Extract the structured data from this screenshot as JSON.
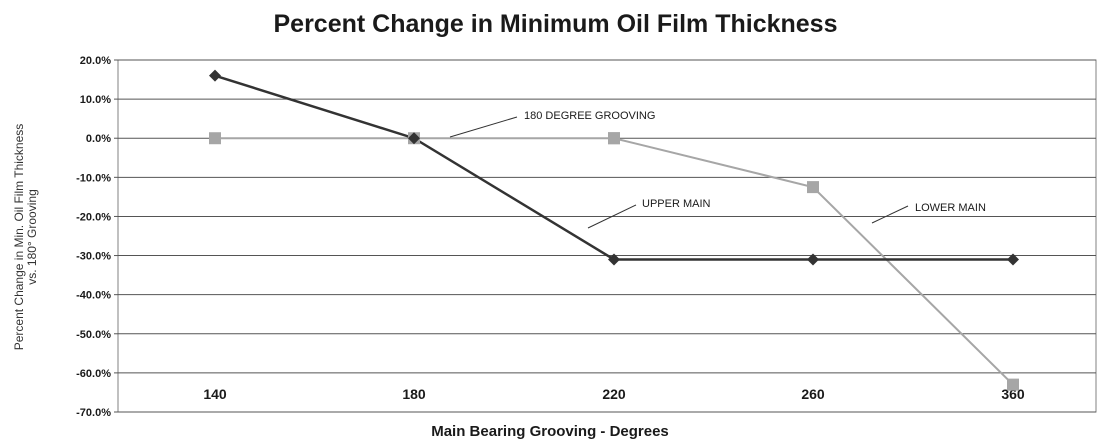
{
  "chart_data": {
    "type": "line",
    "title": "Percent Change in Minimum Oil Film Thickness",
    "xlabel": "Main Bearing Grooving - Degrees",
    "ylabel_lines": [
      "Percent Change in Min. Oil Film Thickness",
      "vs. 180° Grooving"
    ],
    "categories": [
      "140",
      "180",
      "220",
      "260",
      "360"
    ],
    "yticks": [
      "20.0%",
      "10.0%",
      "0.0%",
      "-10.0%",
      "-20.0%",
      "-30.0%",
      "-40.0%",
      "-50.0%",
      "-60.0%",
      "-70.0%"
    ],
    "ylim": [
      -70,
      20
    ],
    "grid": true,
    "series": [
      {
        "name": "UPPER MAIN",
        "marker": "diamond",
        "color": "#333333",
        "values": [
          16,
          0,
          -31,
          -31,
          -31
        ]
      },
      {
        "name": "180 DEGREE GROOVING",
        "marker": "square",
        "color": "#a6a6a6",
        "values": [
          0,
          0,
          0,
          null,
          null
        ]
      },
      {
        "name": "LOWER MAIN",
        "marker": "square",
        "color": "#a6a6a6",
        "values": [
          null,
          null,
          0,
          -12.5,
          -63
        ]
      }
    ],
    "annotations": [
      {
        "text": "180 DEGREE GROOVING",
        "series": "180 DEGREE GROOVING"
      },
      {
        "text": "UPPER MAIN",
        "series": "UPPER MAIN"
      },
      {
        "text": "LOWER MAIN",
        "series": "LOWER MAIN"
      }
    ]
  }
}
